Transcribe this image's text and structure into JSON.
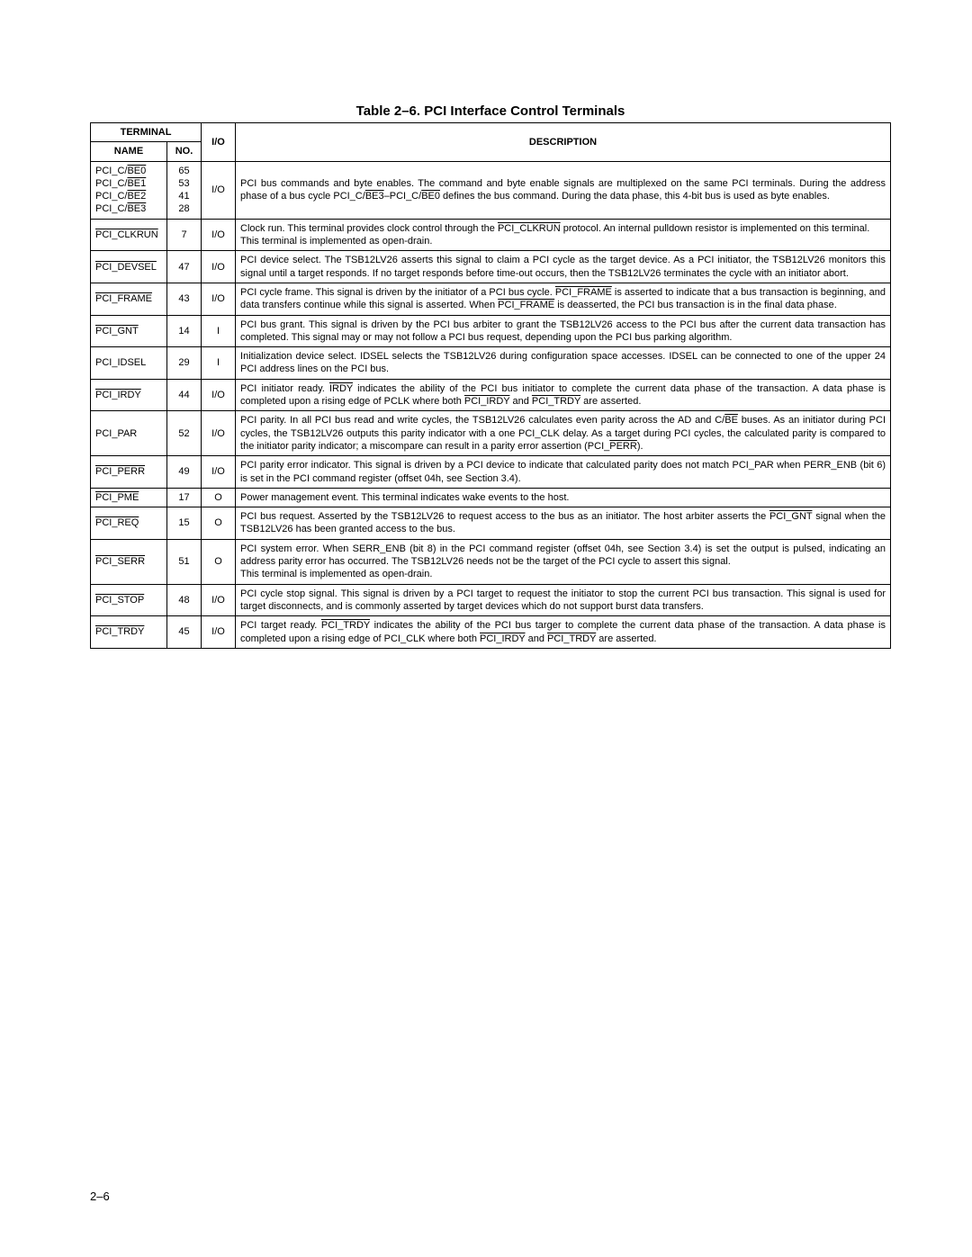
{
  "title": "Table 2–6.  PCI Interface Control Terminals",
  "headers": {
    "terminal": "TERMINAL",
    "name": "NAME",
    "no": "NO.",
    "io": "I/O",
    "description": "DESCRIPTION"
  },
  "rows": [
    {
      "name_html": "PCI_C/<span class='overline'>BE0</span><br>PCI_C/<span class='overline'>BE1</span><br>PCI_C/<span class='overline'>BE2</span><br>PCI_C/<span class='overline'>BE3</span>",
      "no_html": "65<br>53<br>41<br>28",
      "io": "I/O",
      "desc_html": "PCI bus commands and byte enables. The command and byte enable signals are multiplexed on the same PCI terminals. During the address phase of a bus cycle PCI_C/<span class='overline'>BE3</span>–PCI_C/<span class='overline'>BE0</span> defines the bus command. During the data phase, this 4-bit bus is used as byte enables."
    },
    {
      "name_html": "<span class='overline'>PCI_CLKRUN</span>",
      "no_html": "7",
      "io": "I/O",
      "desc_html": "Clock run. This terminal provides clock control through the <span class='overline'>PCI_CLKRUN</span> protocol. An internal pulldown resistor is implemented on this terminal.<br>This terminal is implemented as open-drain."
    },
    {
      "name_html": "<span class='overline'>PCI_DEVSEL</span>",
      "no_html": "47",
      "io": "I/O",
      "desc_html": "PCI device select. The TSB12LV26 asserts this signal to claim a PCI cycle as the target device. As a PCI initiator, the TSB12LV26 monitors this signal until a target responds. If no target responds before time-out occurs, then the TSB12LV26 terminates the cycle with an initiator abort."
    },
    {
      "name_html": "<span class='overline'>PCI_FRAME</span>",
      "no_html": "43",
      "io": "I/O",
      "desc_html": "PCI cycle frame. This signal is driven by the initiator of a PCI bus cycle. <span class='overline'>PCI_FRAME</span> is asserted to indicate that a bus transaction is beginning, and data transfers continue while this signal is asserted. When <span class='overline'>PCI_FRAME</span> is deasserted, the PCI bus transaction is in the final data phase."
    },
    {
      "name_html": "<span class='overline'>PCI_GNT</span>",
      "no_html": "14",
      "io": "I",
      "desc_html": "PCI bus grant. This signal is driven by the PCI bus arbiter to grant the TSB12LV26 access to the PCI bus after the current data transaction has completed. This signal may or may not follow a PCI bus request, depending upon the PCI bus parking algorithm."
    },
    {
      "name_html": "PCI_IDSEL",
      "no_html": "29",
      "io": "I",
      "desc_html": "Initialization device select. IDSEL selects the TSB12LV26 during configuration space accesses. IDSEL can be connected to one of the upper 24 PCI address lines on the PCI bus."
    },
    {
      "name_html": "<span class='overline'>PCI_IRDY</span>",
      "no_html": "44",
      "io": "I/O",
      "desc_html": "PCI initiator ready. <span class='overline'>IRDY</span> indicates the ability of the PCI bus initiator to complete the current data phase of the transaction. A data phase is completed upon a rising edge of PCLK where both <span class='overline'>PCI_IRDY</span> and <span class='overline'>PCI_TRDY</span> are asserted."
    },
    {
      "name_html": "PCI_PAR",
      "no_html": "52",
      "io": "I/O",
      "desc_html": "PCI parity. In all PCI bus read and write cycles, the TSB12LV26 calculates even parity across the AD and C/<span class='overline'>BE</span> buses. As an initiator during PCI cycles, the TSB12LV26 outputs this parity indicator with a one PCI_CLK delay. As a target during PCI cycles, the calculated parity is compared to the initiator parity indicator; a miscompare can result in a parity error assertion (PCI_<span class='overline'>PERR</span>)."
    },
    {
      "name_html": "<span class='overline'>PCI_PERR</span>",
      "no_html": "49",
      "io": "I/O",
      "desc_html": "PCI parity error indicator. This signal is driven by a PCI device to indicate that calculated parity does not match PCI_PAR when PERR_ENB (bit 6) is set in the PCI command register (offset 04h, see Section 3.4)."
    },
    {
      "name_html": "<span class='overline'>PCI_PME</span>",
      "no_html": "17",
      "io": "O",
      "desc_html": "Power management event. This terminal indicates wake events to the host."
    },
    {
      "name_html": "<span class='overline'>PCI_REQ</span>",
      "no_html": "15",
      "io": "O",
      "desc_html": "PCI bus request. Asserted by the TSB12LV26 to request access to the bus as an initiator. The host arbiter asserts the <span class='overline'>PCI_GNT</span> signal when the TSB12LV26 has been granted access to the bus."
    },
    {
      "name_html": "<span class='overline'>PCI_SERR</span>",
      "no_html": "51",
      "io": "O",
      "desc_html": "PCI system error. When SERR_ENB (bit 8) in the PCI command register (offset 04h, see Section 3.4) is set the output is pulsed, indicating an address parity error has occurred. The TSB12LV26 needs not be the target of the PCI cycle to assert this signal.<br>This terminal is implemented as open-drain."
    },
    {
      "name_html": "<span class='overline'>PCI_STOP</span>",
      "no_html": "48",
      "io": "I/O",
      "desc_html": "PCI cycle stop signal. This signal is driven by a PCI target to request the initiator to stop the current PCI bus transaction. This signal is used for target disconnects, and is commonly asserted by target devices which do not support burst data transfers."
    },
    {
      "name_html": "<span class='overline'>PCI_TRDY</span>",
      "no_html": "45",
      "io": "I/O",
      "desc_html": "PCI target ready. <span class='overline'>PCI_TRDY</span> indicates the ability of the PCI bus targer to complete the current data phase of the transaction. A data phase is completed upon a rising edge of PCI_CLK where both <span class='overline'>PCI_IRDY</span> and <span class='overline'>PCI_TRDY</span> are asserted."
    }
  ],
  "page_number": "2–6"
}
